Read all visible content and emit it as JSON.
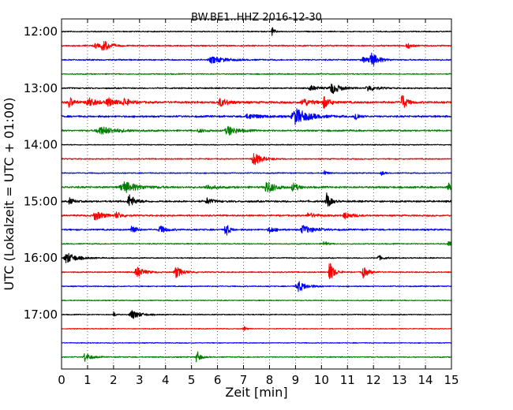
{
  "chart_data": {
    "type": "line",
    "title": "BW.BE1..HHZ 2016-12-30",
    "xlabel": "Zeit  [min]",
    "ylabel": "UTC (Lokalzeit = UTC + 01:00)",
    "xlim": [
      0,
      15
    ],
    "x_ticks": [
      0,
      1,
      2,
      3,
      4,
      5,
      6,
      7,
      8,
      9,
      10,
      11,
      12,
      13,
      14,
      15
    ],
    "x_tick_labels": [
      "0",
      "1",
      "2",
      "3",
      "4",
      "5",
      "6",
      "7",
      "8",
      "9",
      "10",
      "11",
      "12",
      "13",
      "14",
      "15"
    ],
    "row_interval_min": 15,
    "grid": "vertical dotted at each minute",
    "y_tick_labels": [
      {
        "row": 0,
        "label": "12:00"
      },
      {
        "row": 4,
        "label": "13:00"
      },
      {
        "row": 8,
        "label": "14:00"
      },
      {
        "row": 12,
        "label": "15:00"
      },
      {
        "row": 16,
        "label": "16:00"
      },
      {
        "row": 20,
        "label": "17:00"
      }
    ],
    "colors": [
      "#000000",
      "#ff0000",
      "#0000ff",
      "#008000"
    ],
    "rows": [
      {
        "start": "12:00",
        "color": "#000000",
        "noise": 0.8,
        "events": [
          {
            "t": 8.1,
            "a": 6,
            "d": 0.08
          }
        ]
      },
      {
        "start": "12:15",
        "color": "#ff0000",
        "noise": 1.0,
        "events": [
          {
            "t": 1.6,
            "a": 7,
            "d": 0.25
          },
          {
            "t": 1.3,
            "a": 3,
            "d": 0.2
          },
          {
            "t": 13.3,
            "a": 4,
            "d": 0.15
          }
        ]
      },
      {
        "start": "12:30",
        "color": "#0000ff",
        "noise": 1.0,
        "events": [
          {
            "t": 5.8,
            "a": 4,
            "d": 0.5
          },
          {
            "t": 11.9,
            "a": 9,
            "d": 0.25
          },
          {
            "t": 11.6,
            "a": 3,
            "d": 0.3
          }
        ]
      },
      {
        "start": "12:45",
        "color": "#008000",
        "noise": 0.8,
        "events": []
      },
      {
        "start": "13:00",
        "color": "#000000",
        "noise": 1.0,
        "events": [
          {
            "t": 10.4,
            "a": 7,
            "d": 0.3
          },
          {
            "t": 11.8,
            "a": 4,
            "d": 0.3
          },
          {
            "t": 9.6,
            "a": 3,
            "d": 0.3
          }
        ]
      },
      {
        "start": "13:15",
        "color": "#ff0000",
        "noise": 1.6,
        "events": [
          {
            "t": 0.3,
            "a": 8,
            "d": 0.12
          },
          {
            "t": 1.0,
            "a": 6,
            "d": 0.3
          },
          {
            "t": 1.8,
            "a": 5,
            "d": 0.3
          },
          {
            "t": 2.4,
            "a": 5,
            "d": 0.2
          },
          {
            "t": 6.1,
            "a": 5,
            "d": 0.3
          },
          {
            "t": 9.3,
            "a": 5,
            "d": 0.3
          },
          {
            "t": 10.1,
            "a": 7,
            "d": 0.2
          },
          {
            "t": 13.1,
            "a": 11,
            "d": 0.15
          }
        ]
      },
      {
        "start": "13:30",
        "color": "#0000ff",
        "noise": 1.4,
        "events": [
          {
            "t": 9.0,
            "a": 10,
            "d": 0.5
          },
          {
            "t": 11.3,
            "a": 7,
            "d": 0.12
          },
          {
            "t": 7.2,
            "a": 3,
            "d": 0.5
          }
        ]
      },
      {
        "start": "13:45",
        "color": "#008000",
        "noise": 1.2,
        "events": [
          {
            "t": 1.5,
            "a": 5,
            "d": 0.6
          },
          {
            "t": 6.4,
            "a": 6,
            "d": 0.35
          },
          {
            "t": 5.3,
            "a": 2,
            "d": 0.3
          }
        ]
      },
      {
        "start": "14:00",
        "color": "#000000",
        "noise": 0.7,
        "events": []
      },
      {
        "start": "14:15",
        "color": "#ff0000",
        "noise": 0.9,
        "events": [
          {
            "t": 7.4,
            "a": 8,
            "d": 0.3
          }
        ]
      },
      {
        "start": "14:30",
        "color": "#0000ff",
        "noise": 0.8,
        "events": [
          {
            "t": 10.1,
            "a": 4,
            "d": 0.1
          },
          {
            "t": 12.3,
            "a": 3,
            "d": 0.1
          }
        ]
      },
      {
        "start": "14:45",
        "color": "#008000",
        "noise": 1.4,
        "events": [
          {
            "t": 2.4,
            "a": 7,
            "d": 0.5
          },
          {
            "t": 7.9,
            "a": 8,
            "d": 0.3
          },
          {
            "t": 8.9,
            "a": 5,
            "d": 0.2
          },
          {
            "t": 14.9,
            "a": 5,
            "d": 0.2
          },
          {
            "t": 5.6,
            "a": 3,
            "d": 0.3
          }
        ]
      },
      {
        "start": "15:00",
        "color": "#000000",
        "noise": 1.4,
        "events": [
          {
            "t": 2.6,
            "a": 9,
            "d": 0.2
          },
          {
            "t": 10.2,
            "a": 13,
            "d": 0.12
          },
          {
            "t": 5.6,
            "a": 4,
            "d": 0.2
          },
          {
            "t": 0.3,
            "a": 4,
            "d": 0.15
          }
        ]
      },
      {
        "start": "15:15",
        "color": "#ff0000",
        "noise": 1.2,
        "events": [
          {
            "t": 1.3,
            "a": 6,
            "d": 0.3
          },
          {
            "t": 2.1,
            "a": 4,
            "d": 0.2
          },
          {
            "t": 10.9,
            "a": 4,
            "d": 0.3
          },
          {
            "t": 9.5,
            "a": 3,
            "d": 0.3
          }
        ]
      },
      {
        "start": "15:30",
        "color": "#0000ff",
        "noise": 1.2,
        "events": [
          {
            "t": 2.7,
            "a": 9,
            "d": 0.12
          },
          {
            "t": 6.3,
            "a": 11,
            "d": 0.12
          },
          {
            "t": 3.8,
            "a": 5,
            "d": 0.2
          },
          {
            "t": 9.3,
            "a": 5,
            "d": 0.4
          },
          {
            "t": 8.0,
            "a": 4,
            "d": 0.2
          }
        ]
      },
      {
        "start": "15:45",
        "color": "#008000",
        "noise": 0.8,
        "events": [
          {
            "t": 10.1,
            "a": 5,
            "d": 0.1
          },
          {
            "t": 14.9,
            "a": 4,
            "d": 0.15
          }
        ]
      },
      {
        "start": "16:00",
        "color": "#000000",
        "noise": 0.8,
        "events": [
          {
            "t": 0.2,
            "a": 7,
            "d": 0.35
          },
          {
            "t": 12.2,
            "a": 3,
            "d": 0.2
          }
        ]
      },
      {
        "start": "16:15",
        "color": "#ff0000",
        "noise": 0.9,
        "events": [
          {
            "t": 2.9,
            "a": 7,
            "d": 0.25
          },
          {
            "t": 4.4,
            "a": 7,
            "d": 0.25
          },
          {
            "t": 10.3,
            "a": 15,
            "d": 0.15
          },
          {
            "t": 11.6,
            "a": 7,
            "d": 0.2
          }
        ]
      },
      {
        "start": "16:30",
        "color": "#0000ff",
        "noise": 0.8,
        "events": [
          {
            "t": 9.1,
            "a": 7,
            "d": 0.3
          }
        ]
      },
      {
        "start": "16:45",
        "color": "#008000",
        "noise": 0.7,
        "events": []
      },
      {
        "start": "17:00",
        "color": "#000000",
        "noise": 0.7,
        "events": [
          {
            "t": 2.7,
            "a": 6,
            "d": 0.3
          },
          {
            "t": 2.0,
            "a": 4,
            "d": 0.08
          }
        ]
      },
      {
        "start": "17:15",
        "color": "#ff0000",
        "noise": 0.6,
        "events": [
          {
            "t": 7.0,
            "a": 4,
            "d": 0.08
          }
        ]
      },
      {
        "start": "17:30",
        "color": "#0000ff",
        "noise": 0.6,
        "events": []
      },
      {
        "start": "17:45",
        "color": "#008000",
        "noise": 0.8,
        "events": [
          {
            "t": 0.9,
            "a": 6,
            "d": 0.2
          },
          {
            "t": 5.2,
            "a": 9,
            "d": 0.12
          }
        ]
      }
    ]
  }
}
